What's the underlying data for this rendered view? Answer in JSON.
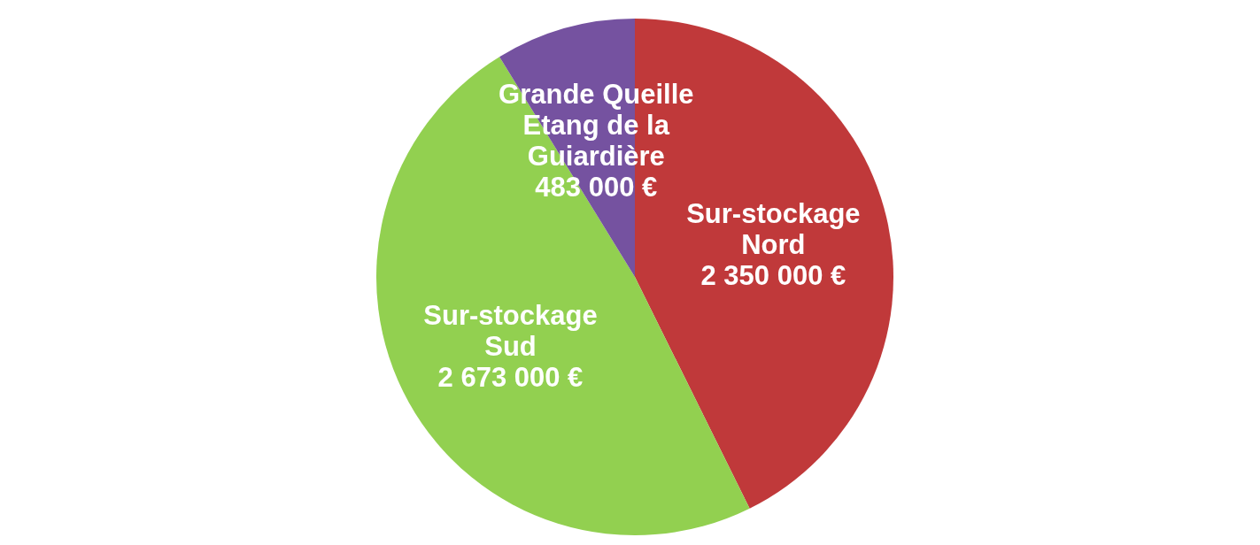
{
  "chart_data": {
    "type": "pie",
    "categories": [
      "Sur-stockage Nord",
      "Sur-stockage Sud",
      "Grande Queille Etang de la Guiardière"
    ],
    "values": [
      2350000,
      2673000,
      483000
    ],
    "colors": [
      "#c0393a",
      "#92d050",
      "#7552a0"
    ],
    "value_labels": [
      "2 350 000 €",
      "2 673 000 €",
      "483 000 €"
    ]
  }
}
